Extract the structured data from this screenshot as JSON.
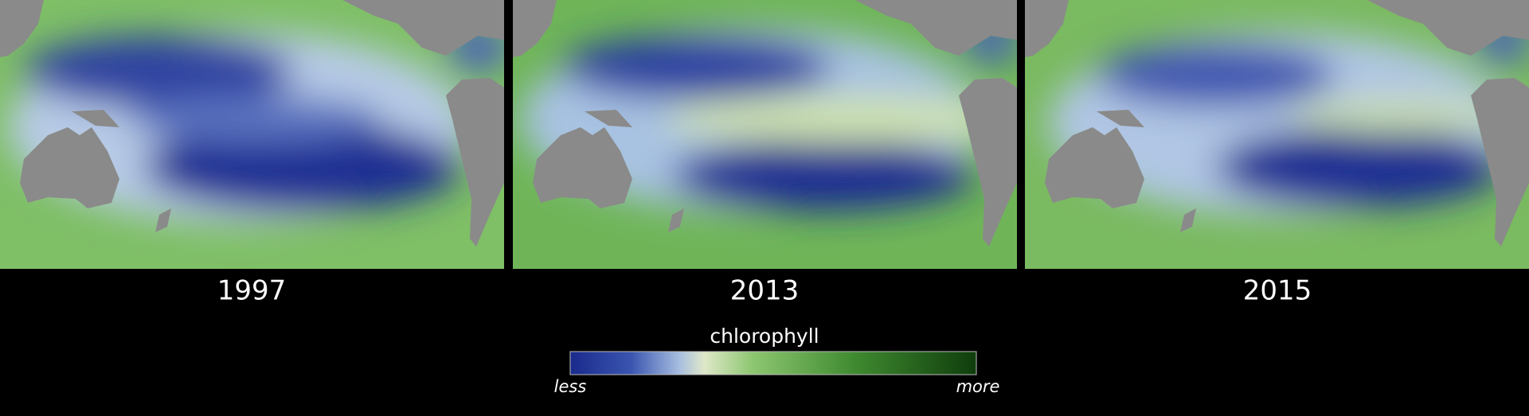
{
  "panels": [
    {
      "label": "1997"
    },
    {
      "label": "2013"
    },
    {
      "label": "2015"
    }
  ],
  "legend": {
    "title": "chlorophyll",
    "min_label": "less",
    "max_label": "more"
  }
}
